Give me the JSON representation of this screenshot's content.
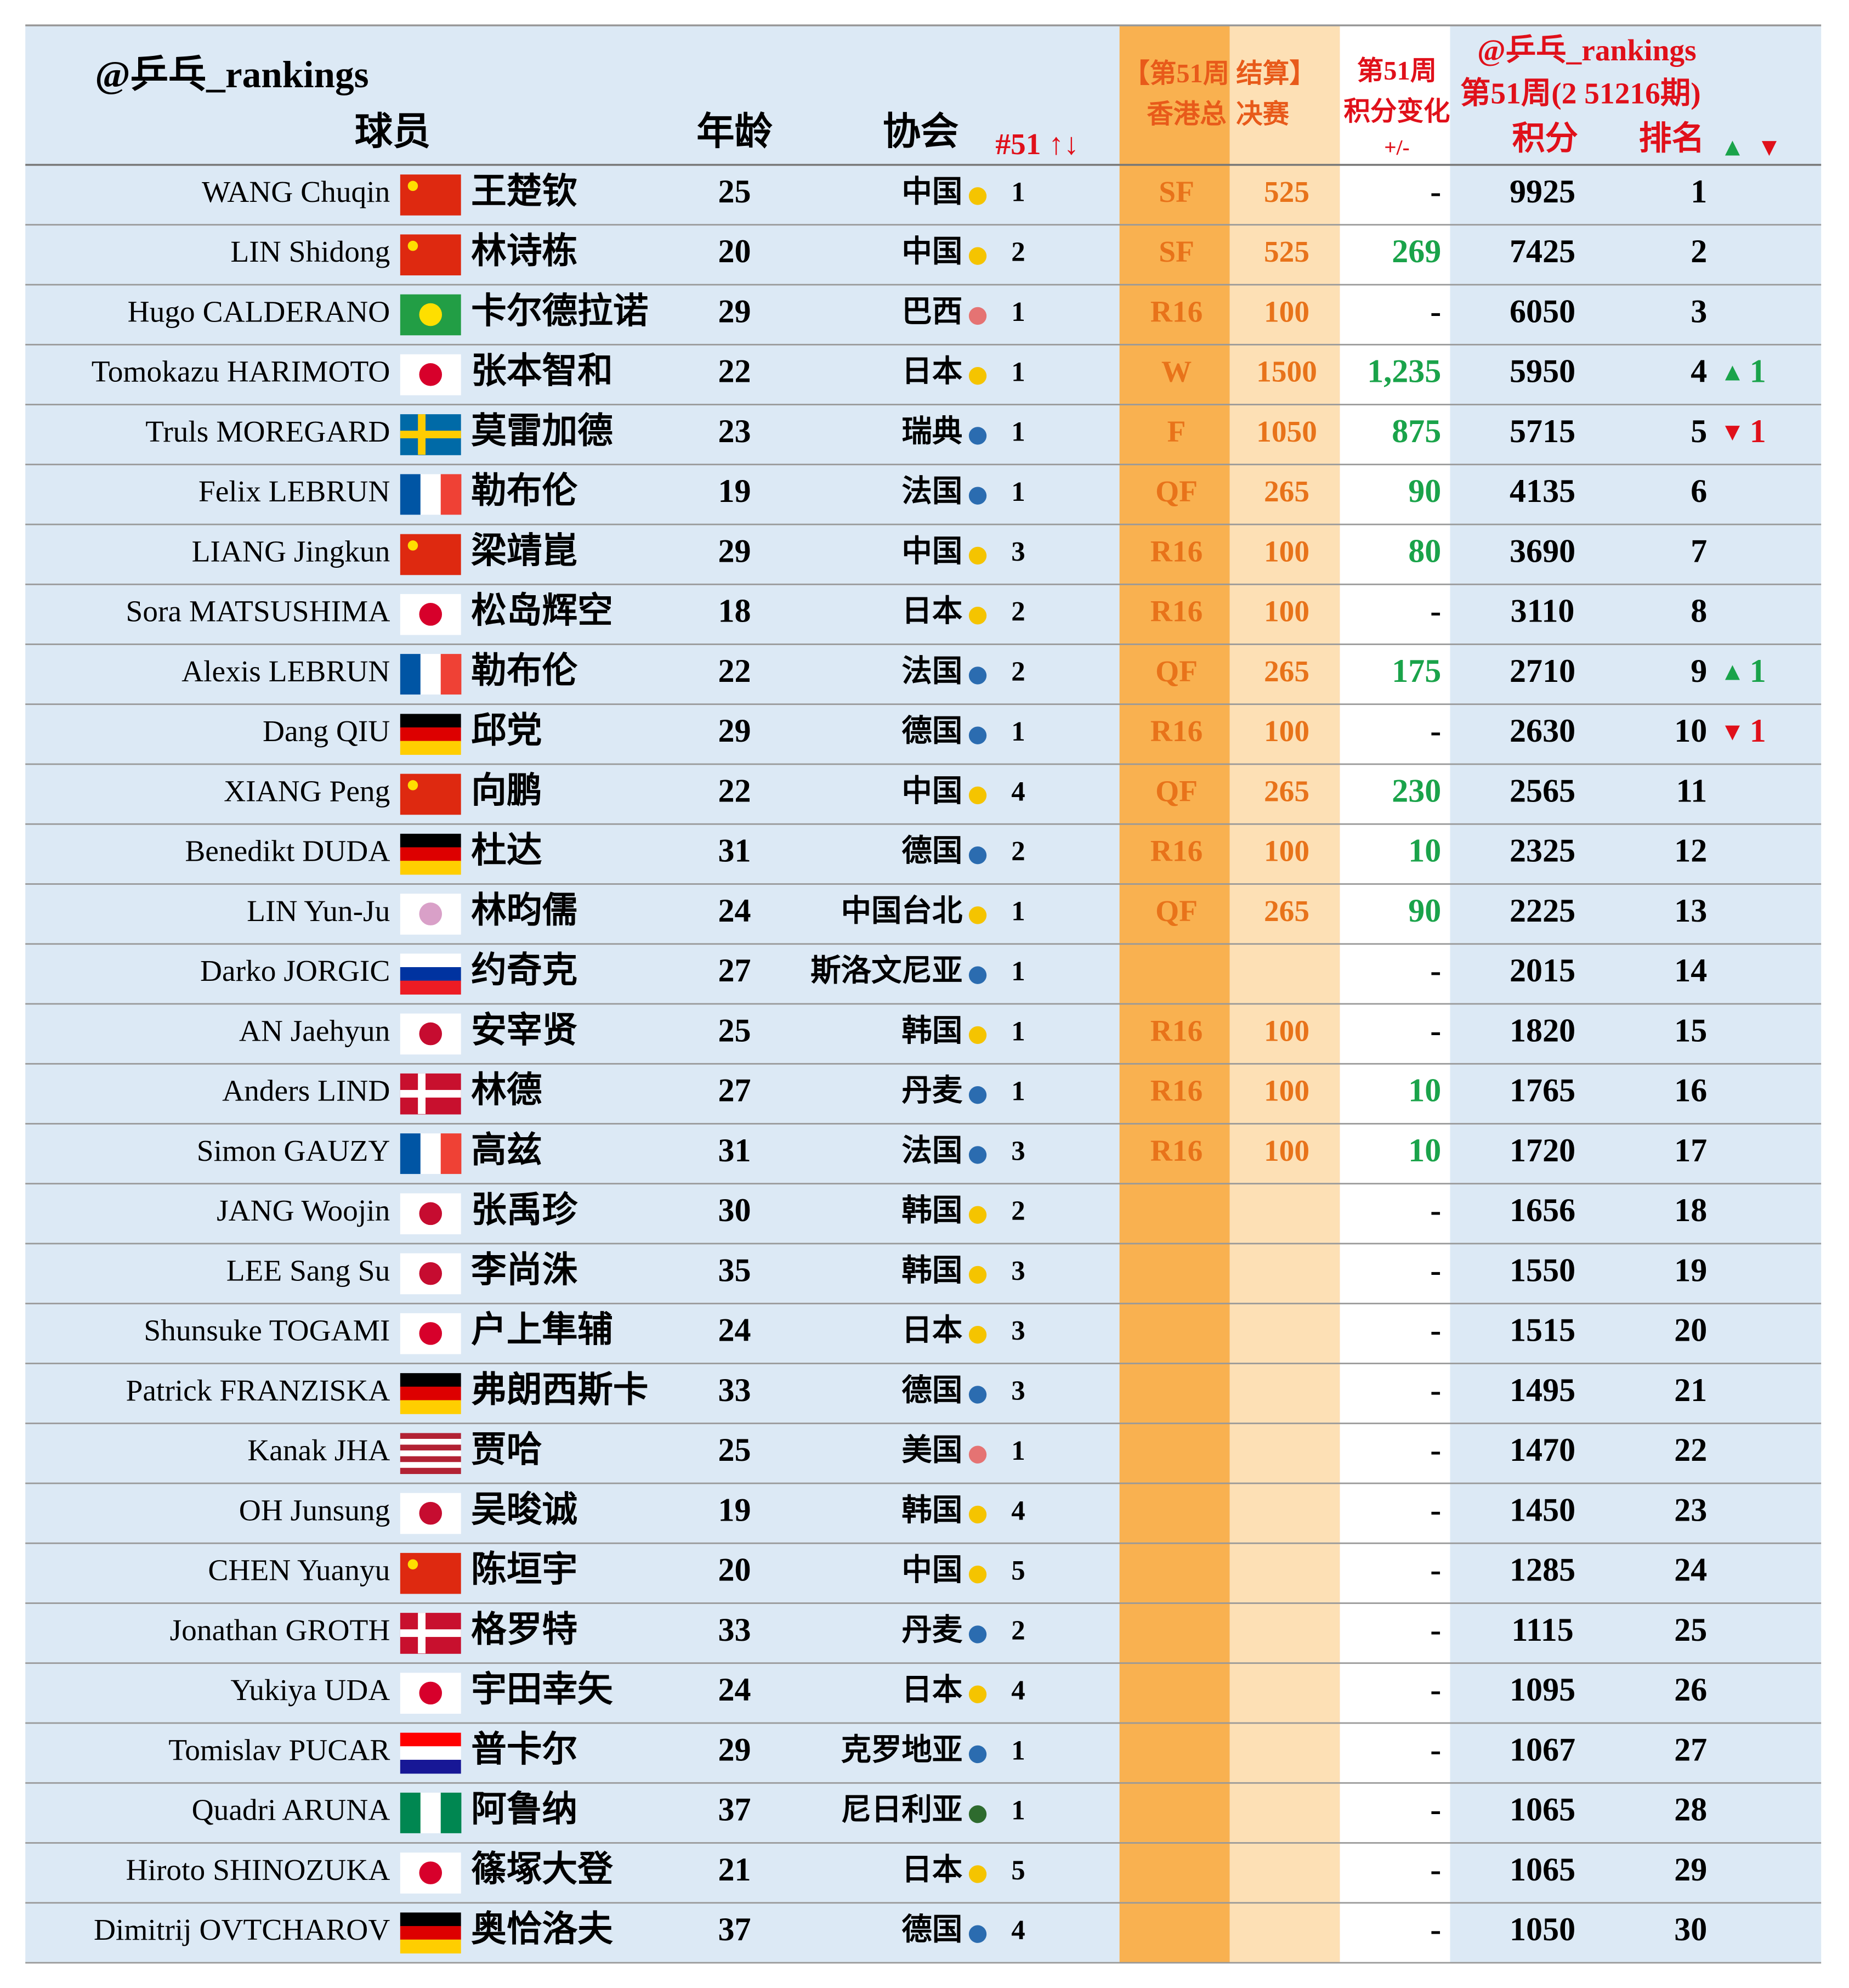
{
  "header": {
    "handle": "@乒乓_rankings",
    "player": "球员",
    "age": "年龄",
    "assoc": "协会",
    "assoc_rank": "#51 ↑↓",
    "event_line1": "【第51周 结算】",
    "event_round": "香港总",
    "event_pts": "决赛",
    "change_line1": "第51周",
    "change_line2": "积分变化",
    "change_line3": "+/-",
    "rank_handle": "@乒乓_rankings",
    "rank_issue": "第51周(2 51216期)",
    "points": "积分",
    "rank": "排名",
    "up": "▲",
    "down": "▼"
  },
  "table": {
    "rows": [
      {
        "player": "WANG Chuqin",
        "cn": "王楚钦",
        "age": 25,
        "assoc": "中国",
        "dot": "#f5c400",
        "flag": {
          "dir": "h",
          "colors": [
            "#de2910"
          ],
          "star": "#ffde00"
        },
        "assoc_rank": 1,
        "round": "SF",
        "pts": 525,
        "change": "-",
        "points": 9925,
        "rank": 1
      },
      {
        "player": "LIN Shidong",
        "cn": "林诗栋",
        "age": 20,
        "assoc": "中国",
        "dot": "#f5c400",
        "flag": {
          "dir": "h",
          "colors": [
            "#de2910"
          ],
          "star": "#ffde00"
        },
        "assoc_rank": 2,
        "round": "SF",
        "pts": 525,
        "change": 269,
        "points": 7425,
        "rank": 2
      },
      {
        "player": "Hugo CALDERANO",
        "cn": "卡尔德拉诺",
        "age": 29,
        "assoc": "巴西",
        "dot": "#e57373",
        "flag": {
          "dir": "h",
          "colors": [
            "#229e45"
          ],
          "disc": "#fedf00"
        },
        "assoc_rank": 1,
        "round": "R16",
        "pts": 100,
        "change": "-",
        "points": 6050,
        "rank": 3
      },
      {
        "player": "Tomokazu HARIMOTO",
        "cn": "张本智和",
        "age": 22,
        "assoc": "日本",
        "dot": "#f5c400",
        "flag": {
          "dir": "h",
          "colors": [
            "#ffffff"
          ],
          "disc": "#d7002b"
        },
        "assoc_rank": 1,
        "round": "W",
        "pts": 1500,
        "change": {
          "value": 1235,
          "label": "1,235"
        },
        "points": 5950,
        "rank": 4,
        "move": {
          "arrow": "▲",
          "value": 1,
          "color": "#1aa34a"
        }
      },
      {
        "player": "Truls MOREGARD",
        "cn": "莫雷加德",
        "age": 23,
        "assoc": "瑞典",
        "dot": "#2b6cb0",
        "flag": {
          "dir": "h",
          "colors": [
            "#006aa7"
          ],
          "cross": "#fecc00"
        },
        "assoc_rank": 1,
        "round": "F",
        "pts": 1050,
        "change": 875,
        "points": 5715,
        "rank": 5,
        "move": {
          "arrow": "▼",
          "value": 1,
          "color": "#e0101a"
        }
      },
      {
        "player": "Felix LEBRUN",
        "cn": "勒布伦",
        "age": 19,
        "assoc": "法国",
        "dot": "#2b6cb0",
        "flag": {
          "dir": "v",
          "colors": [
            "#0055a4",
            "#ffffff",
            "#ef4135"
          ]
        },
        "assoc_rank": 1,
        "round": "QF",
        "pts": 265,
        "change": 90,
        "points": 4135,
        "rank": 6
      },
      {
        "player": "LIANG Jingkun",
        "cn": "梁靖崑",
        "age": 29,
        "assoc": "中国",
        "dot": "#f5c400",
        "flag": {
          "dir": "h",
          "colors": [
            "#de2910"
          ],
          "star": "#ffde00"
        },
        "assoc_rank": 3,
        "round": "R16",
        "pts": 100,
        "change": 80,
        "points": 3690,
        "rank": 7
      },
      {
        "player": "Sora MATSUSHIMA",
        "cn": "松岛辉空",
        "age": 18,
        "assoc": "日本",
        "dot": "#f5c400",
        "flag": {
          "dir": "h",
          "colors": [
            "#ffffff"
          ],
          "disc": "#d7002b"
        },
        "assoc_rank": 2,
        "round": "R16",
        "pts": 100,
        "change": "-",
        "points": 3110,
        "rank": 8
      },
      {
        "player": "Alexis LEBRUN",
        "cn": "勒布伦",
        "age": 22,
        "assoc": "法国",
        "dot": "#2b6cb0",
        "flag": {
          "dir": "v",
          "colors": [
            "#0055a4",
            "#ffffff",
            "#ef4135"
          ]
        },
        "assoc_rank": 2,
        "round": "QF",
        "pts": 265,
        "change": 175,
        "points": 2710,
        "rank": 9,
        "move": {
          "arrow": "▲",
          "value": 1,
          "color": "#1aa34a"
        }
      },
      {
        "player": "Dang QIU",
        "cn": "邱党",
        "age": 29,
        "assoc": "德国",
        "dot": "#2b6cb0",
        "flag": {
          "dir": "h",
          "colors": [
            "#000000",
            "#dd0000",
            "#ffce00"
          ]
        },
        "assoc_rank": 1,
        "round": "R16",
        "pts": 100,
        "change": "-",
        "points": 2630,
        "rank": 10,
        "move": {
          "arrow": "▼",
          "value": 1,
          "color": "#e0101a"
        }
      },
      {
        "player": "XIANG Peng",
        "cn": "向鹏",
        "age": 22,
        "assoc": "中国",
        "dot": "#f5c400",
        "flag": {
          "dir": "h",
          "colors": [
            "#de2910"
          ],
          "star": "#ffde00"
        },
        "assoc_rank": 4,
        "round": "QF",
        "pts": 265,
        "change": 230,
        "points": 2565,
        "rank": 11
      },
      {
        "player": "Benedikt DUDA",
        "cn": "杜达",
        "age": 31,
        "assoc": "德国",
        "dot": "#2b6cb0",
        "flag": {
          "dir": "h",
          "colors": [
            "#000000",
            "#dd0000",
            "#ffce00"
          ]
        },
        "assoc_rank": 2,
        "round": "R16",
        "pts": 100,
        "change": 10,
        "points": 2325,
        "rank": 12
      },
      {
        "player": "LIN Yun-Ju",
        "cn": "林昀儒",
        "age": 24,
        "assoc": "中国台北",
        "dot": "#f5c400",
        "flag": {
          "dir": "h",
          "colors": [
            "#ffffff"
          ],
          "disc": "#d9a0c8"
        },
        "assoc_rank": 1,
        "round": "QF",
        "pts": 265,
        "change": 90,
        "points": 2225,
        "rank": 13
      },
      {
        "player": "Darko JORGIC",
        "cn": "约奇克",
        "age": 27,
        "assoc": "斯洛文尼亚",
        "dot": "#2b6cb0",
        "flag": {
          "dir": "h",
          "colors": [
            "#ffffff",
            "#0033a0",
            "#ed1c24"
          ]
        },
        "assoc_rank": 1,
        "change": "-",
        "points": 2015,
        "rank": 14
      },
      {
        "player": "AN Jaehyun",
        "cn": "安宰贤",
        "age": 25,
        "assoc": "韩国",
        "dot": "#f5c400",
        "flag": {
          "dir": "h",
          "colors": [
            "#ffffff"
          ],
          "disc": "#c60c30"
        },
        "assoc_rank": 1,
        "round": "R16",
        "pts": 100,
        "change": "-",
        "points": 1820,
        "rank": 15
      },
      {
        "player": "Anders LIND",
        "cn": "林德",
        "age": 27,
        "assoc": "丹麦",
        "dot": "#2b6cb0",
        "flag": {
          "dir": "h",
          "colors": [
            "#c8102e"
          ],
          "cross": "#ffffff"
        },
        "assoc_rank": 1,
        "round": "R16",
        "pts": 100,
        "change": 10,
        "points": 1765,
        "rank": 16
      },
      {
        "player": "Simon GAUZY",
        "cn": "高兹",
        "age": 31,
        "assoc": "法国",
        "dot": "#2b6cb0",
        "flag": {
          "dir": "v",
          "colors": [
            "#0055a4",
            "#ffffff",
            "#ef4135"
          ]
        },
        "assoc_rank": 3,
        "round": "R16",
        "pts": 100,
        "change": 10,
        "points": 1720,
        "rank": 17
      },
      {
        "player": "JANG Woojin",
        "cn": "张禹珍",
        "age": 30,
        "assoc": "韩国",
        "dot": "#f5c400",
        "flag": {
          "dir": "h",
          "colors": [
            "#ffffff"
          ],
          "disc": "#c60c30"
        },
        "assoc_rank": 2,
        "change": "-",
        "points": 1656,
        "rank": 18
      },
      {
        "player": "LEE Sang Su",
        "cn": "李尚洙",
        "age": 35,
        "assoc": "韩国",
        "dot": "#f5c400",
        "flag": {
          "dir": "h",
          "colors": [
            "#ffffff"
          ],
          "disc": "#c60c30"
        },
        "assoc_rank": 3,
        "change": "-",
        "points": 1550,
        "rank": 19
      },
      {
        "player": "Shunsuke TOGAMI",
        "cn": "户上隼辅",
        "age": 24,
        "assoc": "日本",
        "dot": "#f5c400",
        "flag": {
          "dir": "h",
          "colors": [
            "#ffffff"
          ],
          "disc": "#d7002b"
        },
        "assoc_rank": 3,
        "change": "-",
        "points": 1515,
        "rank": 20
      },
      {
        "player": "Patrick FRANZISKA",
        "cn": "弗朗西斯卡",
        "age": 33,
        "assoc": "德国",
        "dot": "#2b6cb0",
        "flag": {
          "dir": "h",
          "colors": [
            "#000000",
            "#dd0000",
            "#ffce00"
          ]
        },
        "assoc_rank": 3,
        "change": "-",
        "points": 1495,
        "rank": 21
      },
      {
        "player": "Kanak JHA",
        "cn": "贾哈",
        "age": 25,
        "assoc": "美国",
        "dot": "#e57373",
        "flag": {
          "dir": "h",
          "colors": [
            "#b22234",
            "#ffffff",
            "#b22234",
            "#ffffff",
            "#b22234",
            "#ffffff",
            "#b22234"
          ]
        },
        "assoc_rank": 1,
        "change": "-",
        "points": 1470,
        "rank": 22
      },
      {
        "player": "OH Junsung",
        "cn": "吴晙诚",
        "age": 19,
        "assoc": "韩国",
        "dot": "#f5c400",
        "flag": {
          "dir": "h",
          "colors": [
            "#ffffff"
          ],
          "disc": "#c60c30"
        },
        "assoc_rank": 4,
        "change": "-",
        "points": 1450,
        "rank": 23
      },
      {
        "player": "CHEN Yuanyu",
        "cn": "陈垣宇",
        "age": 20,
        "assoc": "中国",
        "dot": "#f5c400",
        "flag": {
          "dir": "h",
          "colors": [
            "#de2910"
          ],
          "star": "#ffde00"
        },
        "assoc_rank": 5,
        "change": "-",
        "points": 1285,
        "rank": 24
      },
      {
        "player": "Jonathan GROTH",
        "cn": "格罗特",
        "age": 33,
        "assoc": "丹麦",
        "dot": "#2b6cb0",
        "flag": {
          "dir": "h",
          "colors": [
            "#c8102e"
          ],
          "cross": "#ffffff"
        },
        "assoc_rank": 2,
        "change": "-",
        "points": 1115,
        "rank": 25
      },
      {
        "player": "Yukiya UDA",
        "cn": "宇田幸矢",
        "age": 24,
        "assoc": "日本",
        "dot": "#f5c400",
        "flag": {
          "dir": "h",
          "colors": [
            "#ffffff"
          ],
          "disc": "#d7002b"
        },
        "assoc_rank": 4,
        "change": "-",
        "points": 1095,
        "rank": 26
      },
      {
        "player": "Tomislav PUCAR",
        "cn": "普卡尔",
        "age": 29,
        "assoc": "克罗地亚",
        "dot": "#2b6cb0",
        "flag": {
          "dir": "h",
          "colors": [
            "#ff0000",
            "#ffffff",
            "#171796"
          ]
        },
        "assoc_rank": 1,
        "change": "-",
        "points": 1067,
        "rank": 27
      },
      {
        "player": "Quadri ARUNA",
        "cn": "阿鲁纳",
        "age": 37,
        "assoc": "尼日利亚",
        "dot": "#2e6b2e",
        "flag": {
          "dir": "v",
          "colors": [
            "#008751",
            "#ffffff",
            "#008751"
          ]
        },
        "assoc_rank": 1,
        "change": "-",
        "points": 1065,
        "rank": 28
      },
      {
        "player": "Hiroto SHINOZUKA",
        "cn": "篠塚大登",
        "age": 21,
        "assoc": "日本",
        "dot": "#f5c400",
        "flag": {
          "dir": "h",
          "colors": [
            "#ffffff"
          ],
          "disc": "#d7002b"
        },
        "assoc_rank": 5,
        "change": "-",
        "points": 1065,
        "rank": 29
      },
      {
        "player": "Dimitrij OVTCHAROV",
        "cn": "奥恰洛夫",
        "age": 37,
        "assoc": "德国",
        "dot": "#2b6cb0",
        "flag": {
          "dir": "h",
          "colors": [
            "#000000",
            "#dd0000",
            "#ffce00"
          ]
        },
        "assoc_rank": 4,
        "change": "-",
        "points": 1050,
        "rank": 30
      }
    ]
  }
}
